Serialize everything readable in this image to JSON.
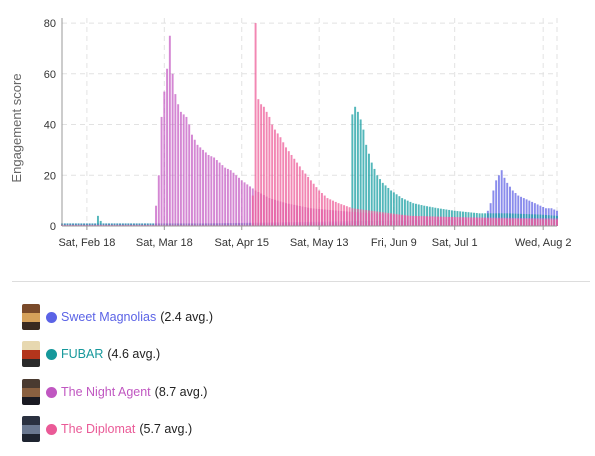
{
  "chart_data": {
    "type": "bar",
    "ylabel": "Engagement score",
    "ylim": [
      0,
      82
    ],
    "yticks": [
      0,
      20,
      40,
      60,
      80
    ],
    "x_range": [
      "2023-02-09",
      "2023-08-07"
    ],
    "xticks": [
      {
        "date": "2023-02-18",
        "label": "Sat, Feb 18"
      },
      {
        "date": "2023-03-18",
        "label": "Sat, Mar 18"
      },
      {
        "date": "2023-04-15",
        "label": "Sat, Apr 15"
      },
      {
        "date": "2023-05-13",
        "label": "Sat, May 13"
      },
      {
        "date": "2023-06-09",
        "label": "Fri, Jun 9"
      },
      {
        "date": "2023-07-01",
        "label": "Sat, Jul 1"
      },
      {
        "date": "2023-08-02",
        "label": "Wed, Aug 2"
      }
    ],
    "grid": true,
    "series": [
      {
        "name": "Sweet Magnolias",
        "color": "#6366e6",
        "points": [
          [
            "2023-02-09",
            1
          ],
          [
            "2023-03-01",
            1
          ],
          [
            "2023-04-01",
            1
          ],
          [
            "2023-05-01",
            1.5
          ],
          [
            "2023-06-01",
            2
          ],
          [
            "2023-07-01",
            2.5
          ],
          [
            "2023-07-12",
            2.5
          ],
          [
            "2023-07-13",
            6
          ],
          [
            "2023-07-14",
            9
          ],
          [
            "2023-07-15",
            14
          ],
          [
            "2023-07-16",
            18
          ],
          [
            "2023-07-17",
            20
          ],
          [
            "2023-07-18",
            22
          ],
          [
            "2023-07-19",
            19
          ],
          [
            "2023-07-20",
            17
          ],
          [
            "2023-07-22",
            14
          ],
          [
            "2023-07-24",
            12
          ],
          [
            "2023-07-26",
            11
          ],
          [
            "2023-07-28",
            10
          ],
          [
            "2023-07-30",
            9
          ],
          [
            "2023-08-01",
            8
          ],
          [
            "2023-08-03",
            7
          ],
          [
            "2023-08-05",
            7
          ],
          [
            "2023-08-07",
            6
          ]
        ]
      },
      {
        "name": "FUBAR",
        "color": "#1a9fa3",
        "points": [
          [
            "2023-02-09",
            1
          ],
          [
            "2023-02-21",
            1
          ],
          [
            "2023-02-22",
            4
          ],
          [
            "2023-02-23",
            2
          ],
          [
            "2023-02-24",
            1
          ],
          [
            "2023-05-24",
            1
          ],
          [
            "2023-05-25",
            44
          ],
          [
            "2023-05-26",
            47
          ],
          [
            "2023-05-27",
            45
          ],
          [
            "2023-05-28",
            42
          ],
          [
            "2023-05-29",
            38
          ],
          [
            "2023-05-30",
            32
          ],
          [
            "2023-06-01",
            25
          ],
          [
            "2023-06-03",
            20
          ],
          [
            "2023-06-05",
            17
          ],
          [
            "2023-06-08",
            14
          ],
          [
            "2023-06-12",
            11
          ],
          [
            "2023-06-16",
            9
          ],
          [
            "2023-06-20",
            8
          ],
          [
            "2023-06-25",
            7
          ],
          [
            "2023-07-01",
            6
          ],
          [
            "2023-07-10",
            5
          ],
          [
            "2023-07-20",
            5
          ],
          [
            "2023-08-01",
            4.5
          ],
          [
            "2023-08-07",
            4
          ]
        ]
      },
      {
        "name": "The Night Agent",
        "color": "#c65fc4",
        "points": [
          [
            "2023-02-09",
            0.5
          ],
          [
            "2023-03-14",
            0.5
          ],
          [
            "2023-03-15",
            8
          ],
          [
            "2023-03-16",
            20
          ],
          [
            "2023-03-17",
            43
          ],
          [
            "2023-03-18",
            53
          ],
          [
            "2023-03-19",
            62
          ],
          [
            "2023-03-20",
            75
          ],
          [
            "2023-03-21",
            60
          ],
          [
            "2023-03-22",
            52
          ],
          [
            "2023-03-23",
            48
          ],
          [
            "2023-03-24",
            45
          ],
          [
            "2023-03-25",
            44
          ],
          [
            "2023-03-26",
            43
          ],
          [
            "2023-03-27",
            40
          ],
          [
            "2023-03-28",
            36
          ],
          [
            "2023-03-30",
            32
          ],
          [
            "2023-04-01",
            30
          ],
          [
            "2023-04-03",
            28
          ],
          [
            "2023-04-05",
            27
          ],
          [
            "2023-04-07",
            25
          ],
          [
            "2023-04-09",
            23
          ],
          [
            "2023-04-11",
            22
          ],
          [
            "2023-04-13",
            20
          ],
          [
            "2023-04-15",
            18
          ],
          [
            "2023-04-20",
            14
          ],
          [
            "2023-04-25",
            11
          ],
          [
            "2023-05-01",
            9
          ],
          [
            "2023-05-10",
            7
          ],
          [
            "2023-05-20",
            6
          ],
          [
            "2023-06-01",
            5
          ],
          [
            "2023-06-15",
            4
          ],
          [
            "2023-07-01",
            3.5
          ],
          [
            "2023-08-07",
            3
          ]
        ]
      },
      {
        "name": "The Diplomat",
        "color": "#ee5f9a",
        "points": [
          [
            "2023-02-09",
            0.3
          ],
          [
            "2023-04-18",
            0.3
          ],
          [
            "2023-04-19",
            12
          ],
          [
            "2023-04-20",
            80
          ],
          [
            "2023-04-21",
            50
          ],
          [
            "2023-04-22",
            48
          ],
          [
            "2023-04-23",
            47
          ],
          [
            "2023-04-24",
            45
          ],
          [
            "2023-04-25",
            43
          ],
          [
            "2023-04-26",
            40
          ],
          [
            "2023-04-27",
            38
          ],
          [
            "2023-04-29",
            35
          ],
          [
            "2023-05-01",
            31
          ],
          [
            "2023-05-03",
            28
          ],
          [
            "2023-05-05",
            25
          ],
          [
            "2023-05-07",
            22
          ],
          [
            "2023-05-10",
            18
          ],
          [
            "2023-05-13",
            14
          ],
          [
            "2023-05-16",
            11
          ],
          [
            "2023-05-20",
            9
          ],
          [
            "2023-05-25",
            7
          ],
          [
            "2023-06-01",
            6
          ],
          [
            "2023-06-15",
            4
          ],
          [
            "2023-07-01",
            3.5
          ],
          [
            "2023-07-15",
            3
          ],
          [
            "2023-08-07",
            2.5
          ]
        ]
      }
    ]
  },
  "legend": [
    {
      "name": "Sweet Magnolias",
      "avg": "(2.4 avg.)",
      "color": "#5b63e6",
      "poster_colors": [
        "#7a4a2a",
        "#d6a15a",
        "#3a2a20"
      ]
    },
    {
      "name": "FUBAR",
      "avg": "(4.6 avg.)",
      "color": "#15989b",
      "poster_colors": [
        "#e7d8b0",
        "#b3351c",
        "#2a2a2a"
      ]
    },
    {
      "name": "The Night Agent",
      "avg": "(8.7 avg.)",
      "color": "#c057c1",
      "poster_colors": [
        "#4a3a30",
        "#8a6040",
        "#1a1a22"
      ]
    },
    {
      "name": "The Diplomat",
      "avg": "(5.7 avg.)",
      "color": "#ea5a97",
      "poster_colors": [
        "#2a3140",
        "#6a7890",
        "#1e2430"
      ]
    }
  ]
}
